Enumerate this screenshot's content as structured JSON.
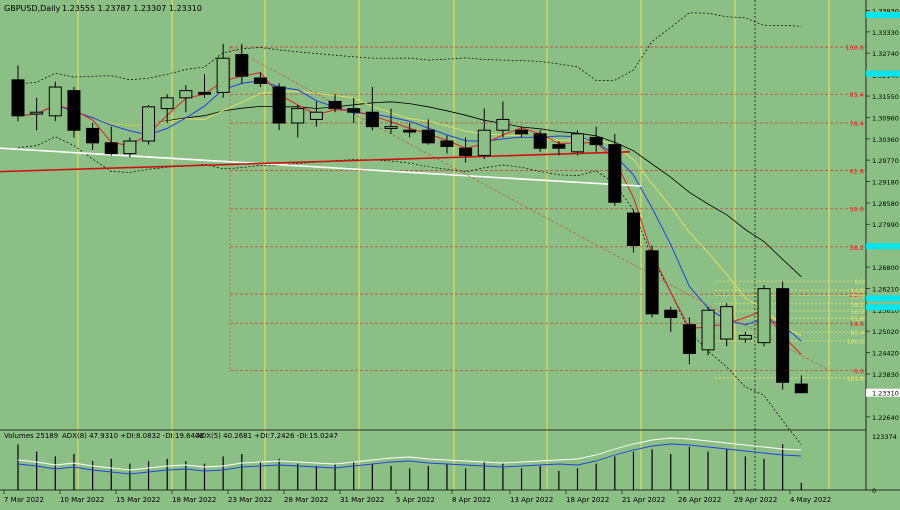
{
  "header": {
    "symbol_label": "GBPUSD,Daily",
    "ohlc": "1.23555 1.23787 1.23307 1.23310"
  },
  "indicator_header": {
    "volume_label": "Volumes 25189",
    "adx8": "ADX(8) 47.9310 +DI:8.0832 -DI:19.6408",
    "adx5": "ADX(5) 40.2681 +DI:7.2426 -DI:15.0247"
  },
  "colors": {
    "background": "#8cbf85",
    "candle_body": "#000000",
    "fib_line": "#c84a3a",
    "fib_label": "#e02020",
    "yellow_level": "#f0e060",
    "cyan_tag": "#00e5ee",
    "vline": "#f0e060"
  },
  "chart_data": {
    "type": "candlestick",
    "y_axis_labels": [
      "1.33930",
      "1.33330",
      "1.32740",
      "1.32140",
      "1.31550",
      "1.30960",
      "1.30360",
      "1.29770",
      "1.29180",
      "1.28580",
      "1.27990",
      "1.27400",
      "1.26800",
      "1.26210",
      "1.25610",
      "1.25020",
      "1.24420",
      "1.23830",
      "1.23310",
      "1.22640"
    ],
    "current_price": "1.23310",
    "ylim": [
      1.2233,
      1.3405
    ],
    "x_labels": [
      "7 Mar 2022",
      "10 Mar 2022",
      "15 Mar 2022",
      "18 Mar 2022",
      "23 Mar 2022",
      "28 Mar 2022",
      "31 Mar 2022",
      "5 Apr 2022",
      "8 Apr 2022",
      "13 Apr 2022",
      "18 Apr 2022",
      "21 Apr 2022",
      "26 Apr 2022",
      "29 Apr 2022",
      "4 May 2022"
    ],
    "candles": [
      {
        "o": 1.32,
        "h": 1.324,
        "l": 1.3085,
        "c": 1.31
      },
      {
        "o": 1.3105,
        "h": 1.315,
        "l": 1.306,
        "c": 1.311
      },
      {
        "o": 1.31,
        "h": 1.3195,
        "l": 1.3085,
        "c": 1.318
      },
      {
        "o": 1.317,
        "h": 1.318,
        "l": 1.304,
        "c": 1.306
      },
      {
        "o": 1.3065,
        "h": 1.308,
        "l": 1.3005,
        "c": 1.3025
      },
      {
        "o": 1.3025,
        "h": 1.307,
        "l": 1.299,
        "c": 1.2995
      },
      {
        "o": 1.2995,
        "h": 1.304,
        "l": 1.2985,
        "c": 1.303
      },
      {
        "o": 1.303,
        "h": 1.313,
        "l": 1.302,
        "c": 1.3125
      },
      {
        "o": 1.312,
        "h": 1.316,
        "l": 1.308,
        "c": 1.315
      },
      {
        "o": 1.315,
        "h": 1.3185,
        "l": 1.311,
        "c": 1.317
      },
      {
        "o": 1.3165,
        "h": 1.3215,
        "l": 1.315,
        "c": 1.316
      },
      {
        "o": 1.3165,
        "h": 1.33,
        "l": 1.315,
        "c": 1.326
      },
      {
        "o": 1.327,
        "h": 1.33,
        "l": 1.319,
        "c": 1.321
      },
      {
        "o": 1.3205,
        "h": 1.322,
        "l": 1.318,
        "c": 1.319
      },
      {
        "o": 1.318,
        "h": 1.319,
        "l": 1.306,
        "c": 1.308
      },
      {
        "o": 1.308,
        "h": 1.313,
        "l": 1.304,
        "c": 1.312
      },
      {
        "o": 1.309,
        "h": 1.314,
        "l": 1.307,
        "c": 1.311
      },
      {
        "o": 1.314,
        "h": 1.316,
        "l": 1.311,
        "c": 1.312
      },
      {
        "o": 1.312,
        "h": 1.315,
        "l": 1.308,
        "c": 1.311
      },
      {
        "o": 1.311,
        "h": 1.318,
        "l": 1.306,
        "c": 1.307
      },
      {
        "o": 1.3065,
        "h": 1.312,
        "l": 1.305,
        "c": 1.307
      },
      {
        "o": 1.306,
        "h": 1.308,
        "l": 1.304,
        "c": 1.3055
      },
      {
        "o": 1.306,
        "h": 1.309,
        "l": 1.302,
        "c": 1.3025
      },
      {
        "o": 1.303,
        "h": 1.3045,
        "l": 1.2995,
        "c": 1.3015
      },
      {
        "o": 1.301,
        "h": 1.304,
        "l": 1.297,
        "c": 1.299
      },
      {
        "o": 1.299,
        "h": 1.312,
        "l": 1.298,
        "c": 1.306
      },
      {
        "o": 1.306,
        "h": 1.314,
        "l": 1.304,
        "c": 1.309
      },
      {
        "o": 1.306,
        "h": 1.307,
        "l": 1.304,
        "c": 1.305
      },
      {
        "o": 1.305,
        "h": 1.306,
        "l": 1.3,
        "c": 1.301
      },
      {
        "o": 1.302,
        "h": 1.303,
        "l": 1.299,
        "c": 1.301
      },
      {
        "o": 1.3,
        "h": 1.306,
        "l": 1.299,
        "c": 1.305
      },
      {
        "o": 1.304,
        "h": 1.307,
        "l": 1.3,
        "c": 1.302
      },
      {
        "o": 1.302,
        "h": 1.305,
        "l": 1.285,
        "c": 1.286
      },
      {
        "o": 1.283,
        "h": 1.284,
        "l": 1.272,
        "c": 1.274
      },
      {
        "o": 1.2725,
        "h": 1.274,
        "l": 1.254,
        "c": 1.255
      },
      {
        "o": 1.256,
        "h": 1.257,
        "l": 1.25,
        "c": 1.254
      },
      {
        "o": 1.252,
        "h": 1.254,
        "l": 1.241,
        "c": 1.244
      },
      {
        "o": 1.245,
        "h": 1.257,
        "l": 1.2435,
        "c": 1.256
      },
      {
        "o": 1.248,
        "h": 1.258,
        "l": 1.246,
        "c": 1.257
      },
      {
        "o": 1.248,
        "h": 1.25,
        "l": 1.247,
        "c": 1.249
      },
      {
        "o": 1.247,
        "h": 1.263,
        "l": 1.246,
        "c": 1.262
      },
      {
        "o": 1.262,
        "h": 1.264,
        "l": 1.234,
        "c": 1.236
      },
      {
        "o": 1.2355,
        "h": 1.2379,
        "l": 1.2331,
        "c": 1.2331
      }
    ],
    "fib_levels": [
      {
        "label": "100.0",
        "price": 1.3291
      },
      {
        "label": "85.4",
        "price": 1.316
      },
      {
        "label": "76.4",
        "price": 1.308
      },
      {
        "label": "61.8",
        "price": 1.2948
      },
      {
        "label": "50.0",
        "price": 1.2842
      },
      {
        "label": "38.2",
        "price": 1.2736
      },
      {
        "label": "23.6",
        "price": 1.2605
      },
      {
        "label": "14.6",
        "price": 1.2524
      },
      {
        "label": "0.0",
        "price": 1.2393
      }
    ],
    "yellow_levels": [
      {
        "label": "0.0",
        "price": 1.2641
      },
      {
        "label": "14.6",
        "price": 1.2616
      },
      {
        "label": "23.6",
        "price": 1.2601
      },
      {
        "label": "38.2",
        "price": 1.2578
      },
      {
        "label": "50.0",
        "price": 1.2558
      },
      {
        "label": "61.8",
        "price": 1.2538
      },
      {
        "label": "85.4",
        "price": 1.2499
      },
      {
        "label": "100.0",
        "price": 1.2475
      },
      {
        "label": "161.8",
        "price": 1.2372
      }
    ],
    "volume_labels": [
      "123374",
      "0"
    ],
    "volumes": [
      0.95,
      0.8,
      0.7,
      0.75,
      0.6,
      0.65,
      0.55,
      0.6,
      0.65,
      0.6,
      0.55,
      0.7,
      0.75,
      0.6,
      0.65,
      0.55,
      0.5,
      0.55,
      0.6,
      0.55,
      0.5,
      0.45,
      0.5,
      0.55,
      0.45,
      0.6,
      0.55,
      0.45,
      0.5,
      0.4,
      0.45,
      0.55,
      0.7,
      0.8,
      0.85,
      0.75,
      0.9,
      0.8,
      0.85,
      0.7,
      0.65,
      0.95,
      0.15
    ]
  }
}
